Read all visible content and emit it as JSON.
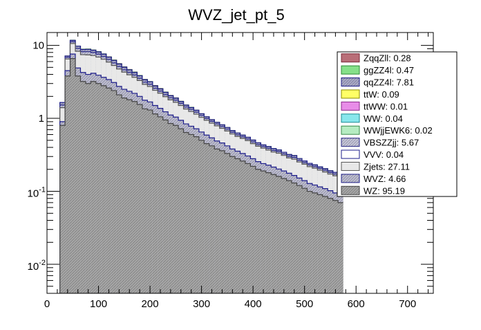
{
  "chart_data": {
    "type": "area",
    "title": "WVZ_jet_pt_5",
    "xlabel": "",
    "ylabel": "",
    "xlim": [
      0,
      750
    ],
    "ylim": [
      0.004,
      15
    ],
    "yscale": "log",
    "x_ticks": [
      0,
      100,
      200,
      300,
      400,
      500,
      600,
      700
    ],
    "x_tick_labels": [
      "0",
      "100",
      "200",
      "300",
      "400",
      "500",
      "600",
      "700"
    ],
    "y_ticks": [
      0.01,
      0.1,
      1,
      10
    ],
    "y_tick_labels": [
      {
        "base": "10",
        "exp": "-2"
      },
      {
        "base": "10",
        "exp": "-1"
      },
      {
        "base": "1",
        "exp": ""
      },
      {
        "base": "10",
        "exp": ""
      }
    ],
    "legend_position": "top-right",
    "bin_edges_start": 15,
    "bin_width": 10,
    "series_order": [
      "WZ",
      "WVZ",
      "Zjets",
      "VVV",
      "VBSZZjj",
      "WWjjEWK6",
      "WW",
      "ttWW",
      "ttW",
      "qqZZ4l",
      "ggZZ4l",
      "ZqqZll"
    ],
    "series": [
      {
        "name": "ZqqZll",
        "integral": "0.28",
        "fill": "#b96e78",
        "stroke": "#7a2a3a",
        "hatch": false,
        "values": [
          0,
          0,
          0,
          0,
          0,
          0.018,
          0.014,
          0,
          0,
          0,
          0.014,
          0.018,
          0.018,
          0.018,
          0.018,
          0.016,
          0.018,
          0.012,
          0,
          0.013,
          0.013,
          0.008,
          0.01,
          0.012,
          0
        ]
      },
      {
        "name": "ggZZ4l",
        "integral": "0.47",
        "fill": "#86e08a",
        "stroke": "#2c8a35",
        "hatch": false,
        "values": [
          0,
          0,
          0,
          0.03,
          0,
          0.05,
          0.06,
          0.045,
          0.04,
          0.045,
          0.04,
          0.04,
          0.035,
          0.03,
          0.025,
          0.038,
          0.022,
          0.018,
          0.018,
          0.016,
          0.016,
          0.011,
          0.007,
          0.007,
          0.009,
          0.006,
          0.007
        ]
      },
      {
        "name": "qqZZ4l",
        "integral": "7.81",
        "fill": "#a8a8c8",
        "stroke": "#1c1c8a",
        "hatch": true,
        "values": [
          0,
          0.13,
          0.3,
          0.5,
          0.68,
          0.6,
          0.62,
          0.6,
          0.58,
          0.55,
          0.5,
          0.48,
          0.44,
          0.4,
          0.37,
          0.33,
          0.3,
          0.26,
          0.25,
          0.2,
          0.17,
          0.16,
          0.13,
          0.12,
          0.1,
          0.09,
          0.08,
          0.075,
          0.06,
          0.055,
          0.05,
          0.045,
          0.042,
          0.04,
          0.036,
          0.034,
          0.03,
          0.028,
          0.028,
          0.025,
          0.022,
          0.022,
          0.022,
          0.02,
          0.018,
          0.017,
          0.018,
          0.015,
          0.014,
          0.012,
          0.012,
          0.01,
          0.01,
          0.01,
          0.01,
          0.012
        ]
      },
      {
        "name": "ttW",
        "integral": "0.09",
        "fill": "#ffff66",
        "stroke": "#8a8a00",
        "hatch": false,
        "values": []
      },
      {
        "name": "ttWW",
        "integral": "0.01",
        "fill": "#e88ce8",
        "stroke": "#8a2a8a",
        "hatch": false,
        "values": []
      },
      {
        "name": "WW",
        "integral": "0.04",
        "fill": "#88e6ec",
        "stroke": "#1a8a90",
        "hatch": false,
        "values": []
      },
      {
        "name": "WWjjEWK6",
        "integral": "0.02",
        "fill": "#b6ecc2",
        "stroke": "#3a8a4a",
        "hatch": false,
        "values": []
      },
      {
        "name": "VBSZZjj",
        "integral": "5.67",
        "fill": "#c4c4d8",
        "stroke": "#2a2a8a",
        "hatch": true,
        "values": [
          0,
          0.12,
          0.35,
          0.6,
          0.78,
          0.74,
          0.8,
          0.72,
          0.66,
          0.58,
          0.5,
          0.44,
          0.38,
          0.32,
          0.3,
          0.27,
          0.23,
          0.2,
          0.19,
          0.16,
          0.15,
          0.13,
          0.12,
          0.11,
          0.1,
          0.085,
          0.085,
          0.075,
          0.065,
          0.055,
          0.05,
          0.047,
          0.043,
          0.039,
          0.034,
          0.03,
          0.028,
          0.027,
          0.025,
          0.022,
          0.02,
          0.02,
          0.018,
          0.017,
          0.015,
          0.015,
          0.016,
          0.014,
          0.012,
          0.012,
          0.011,
          0.011,
          0.01,
          0.009,
          0.009,
          0.01
        ]
      },
      {
        "name": "VVV",
        "integral": "0.04",
        "fill": "#ffffff",
        "stroke": "#1c1c8a",
        "hatch": false,
        "values": []
      },
      {
        "name": "Zjets",
        "integral": "27.11",
        "fill": "#e8e8e8",
        "stroke": "#555555",
        "hatch": false,
        "values": [
          0,
          0.5,
          2.0,
          3.0,
          3.4,
          3.2,
          3.4,
          3.1,
          3.0,
          2.8,
          2.5,
          2.2,
          2.0,
          1.8,
          1.6,
          1.45,
          1.3,
          1.15,
          1.05,
          0.92,
          0.84,
          0.75,
          0.68,
          0.62,
          0.56,
          0.5,
          0.46,
          0.42,
          0.38,
          0.35,
          0.32,
          0.3,
          0.27,
          0.25,
          0.23,
          0.21,
          0.2,
          0.19,
          0.17,
          0.16,
          0.15,
          0.14,
          0.13,
          0.13,
          0.12,
          0.11,
          0.11,
          0.1,
          0.095,
          0.09,
          0.085,
          0.08,
          0.075,
          0.07,
          0.068,
          0.06
        ]
      },
      {
        "name": "WVZ",
        "integral": "4.66",
        "fill": "#bcbcd0",
        "stroke": "#1c1c8a",
        "hatch": true,
        "values": [
          0,
          0.1,
          0.7,
          1.0,
          1.1,
          1.05,
          1.0,
          0.95,
          0.9,
          0.85,
          0.8,
          0.7,
          0.64,
          0.6,
          0.55,
          0.5,
          0.45,
          0.42,
          0.38,
          0.35,
          0.32,
          0.28,
          0.26,
          0.24,
          0.22,
          0.2,
          0.18,
          0.16,
          0.15,
          0.14,
          0.12,
          0.11,
          0.1,
          0.09,
          0.08,
          0.075,
          0.07,
          0.065,
          0.06,
          0.055,
          0.05,
          0.048,
          0.045,
          0.042,
          0.04,
          0.037,
          0.035,
          0.032,
          0.03,
          0.028,
          0.027,
          0.025,
          0.024,
          0.022,
          0.02,
          0.02
        ]
      },
      {
        "name": "WZ",
        "integral": "95.19",
        "fill": "#a6a6a6",
        "stroke": "#444444",
        "hatch": true,
        "values": [
          0,
          0.8,
          3.8,
          6.6,
          3.8,
          3.2,
          3.0,
          3.2,
          3.0,
          2.8,
          2.6,
          2.4,
          2.1,
          1.9,
          1.8,
          1.7,
          1.55,
          1.35,
          1.3,
          1.15,
          1.05,
          0.95,
          0.85,
          0.8,
          0.72,
          0.64,
          0.6,
          0.56,
          0.5,
          0.45,
          0.42,
          0.38,
          0.36,
          0.33,
          0.3,
          0.28,
          0.26,
          0.24,
          0.22,
          0.2,
          0.19,
          0.18,
          0.17,
          0.16,
          0.15,
          0.14,
          0.13,
          0.12,
          0.11,
          0.1,
          0.095,
          0.09,
          0.085,
          0.08,
          0.075,
          0.07
        ]
      }
    ]
  }
}
